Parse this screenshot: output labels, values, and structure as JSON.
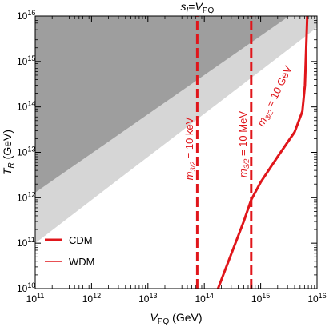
{
  "chart_data": {
    "type": "line",
    "x_scale": "log",
    "y_scale": "log",
    "xlim": [
      100000000000.0,
      1e+16
    ],
    "ylim": [
      10000000000.0,
      1e+16
    ],
    "xlabel": {
      "main": "V",
      "sub": "PQ",
      "unit": " (GeV)"
    },
    "ylabel": {
      "main": "T",
      "sub": "R",
      "unit": " (GeV)"
    },
    "top_label": {
      "s": "s",
      "s_sub": "I",
      "eq": "=",
      "v": "V",
      "v_sub": "PQ"
    },
    "x_ticks": [
      {
        "value": 100000000000.0,
        "base": "10",
        "exp": "11"
      },
      {
        "value": 1000000000000.0,
        "base": "10",
        "exp": "12"
      },
      {
        "value": 10000000000000.0,
        "base": "10",
        "exp": "13"
      },
      {
        "value": 100000000000000.0,
        "base": "10",
        "exp": "14"
      },
      {
        "value": 1000000000000000.0,
        "base": "10",
        "exp": "15"
      },
      {
        "value": 1e+16,
        "base": "10",
        "exp": "16"
      }
    ],
    "y_ticks": [
      {
        "value": 10000000000.0,
        "base": "10",
        "exp": "10"
      },
      {
        "value": 100000000000.0,
        "base": "10",
        "exp": "11"
      },
      {
        "value": 1000000000000.0,
        "base": "10",
        "exp": "12"
      },
      {
        "value": 10000000000000.0,
        "base": "10",
        "exp": "13"
      },
      {
        "value": 100000000000000.0,
        "base": "10",
        "exp": "14"
      },
      {
        "value": 1000000000000000.0,
        "base": "10",
        "exp": "15"
      },
      {
        "value": 1e+16,
        "base": "10",
        "exp": "16"
      }
    ],
    "shaded_regions": [
      {
        "color": "#d6d6d6",
        "points": [
          [
            100000000000.0,
            100000000000.0
          ],
          [
            1e+16,
            5600000000000000.0
          ],
          [
            1e+16,
            1e+16
          ],
          [
            100000000000.0,
            1e+16
          ]
        ]
      },
      {
        "color": "#9e9e9e",
        "points": [
          [
            100000000000.0,
            1300000000000.0
          ],
          [
            3200000000000000.0,
            1e+16
          ],
          [
            100000000000.0,
            1e+16
          ]
        ]
      }
    ],
    "series": [
      {
        "legend_name": "CDM",
        "style": "solid",
        "color": "#e0161b",
        "x": [
          175000000000000.0,
          500000000000000.0,
          680000000000000.0,
          1000000000000000.0,
          2000000000000000.0,
          4000000000000000.0,
          5500000000000000.0,
          6100000000000000.0,
          6300000000000000.0,
          6500000000000000.0,
          6700000000000000.0
        ],
        "y": [
          10000000000.0,
          300000000000.0,
          900000000000.0,
          2200000000000.0,
          8000000000000.0,
          28000000000000.0,
          80000000000000.0,
          300000000000000.0,
          1000000000000000.0,
          3000000000000000.0,
          1e+16
        ]
      },
      {
        "legend_name": "WDM",
        "style": "dashed",
        "color": "#e0161b",
        "x": [
          75000000000000.0,
          75000000000000.0
        ],
        "y": [
          10000000000.0,
          1e+16
        ]
      },
      {
        "style": "dashed",
        "color": "#e0161b",
        "x": [
          680000000000000.0,
          680000000000000.0
        ],
        "y": [
          10000000000.0,
          1e+16
        ]
      }
    ],
    "annotations": [
      {
        "m": "m",
        "sub": "3/2",
        "text": " = 10 keV",
        "x": 63000000000000.0,
        "y": 12000000000000.0
      },
      {
        "m": "m",
        "sub": "3/2",
        "text": " = 10 MeV",
        "x": 560000000000000.0,
        "y": 15000000000000.0
      },
      {
        "m": "m",
        "sub": "3/2",
        "text": " = 10 GeV",
        "x": 2000000000000000.0,
        "y": 160000000000000.0
      }
    ],
    "legend": {
      "placement": "lower-left",
      "entries": [
        {
          "label": "CDM",
          "style": "solid-thick"
        },
        {
          "label": "WDM",
          "style": "solid-thin"
        }
      ]
    },
    "colors": {
      "curve": "#e0161b",
      "light_gray": "#d6d6d6",
      "dark_gray": "#9e9e9e"
    }
  }
}
